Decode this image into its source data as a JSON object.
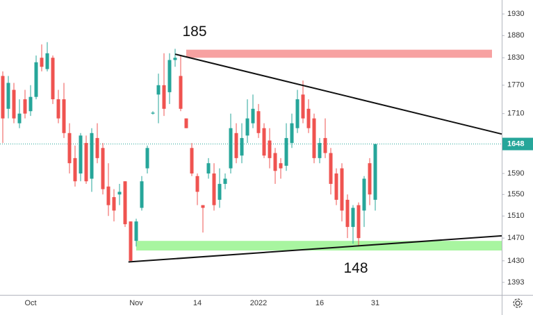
{
  "chart_data": {
    "type": "candlestick",
    "log_scale": true,
    "ylim": [
      1372,
      1963
    ],
    "yticks": [
      1393,
      1430,
      1470,
      1510,
      1550,
      1590,
      1710,
      1770,
      1830,
      1880,
      1930
    ],
    "xlim": [
      -0.5,
      89.75
    ],
    "up_color": "#26a69a",
    "down_color": "#ef5350",
    "categories": [
      null,
      null,
      null,
      null,
      null,
      "Oct",
      null,
      null,
      null,
      null,
      null,
      null,
      null,
      null,
      null,
      null,
      null,
      null,
      null,
      null,
      null,
      null,
      null,
      null,
      "Nov",
      null,
      null,
      null,
      null,
      null,
      null,
      null,
      null,
      null,
      null,
      "14",
      null,
      null,
      null,
      null,
      null,
      null,
      null,
      null,
      null,
      null,
      "2022",
      null,
      null,
      null,
      null,
      null,
      null,
      null,
      null,
      null,
      null,
      "16",
      null,
      null,
      null,
      null,
      null,
      null,
      null,
      null,
      null,
      "31"
    ],
    "open": [
      1790,
      1720,
      1760,
      1690,
      1740,
      1715,
      1745,
      1830,
      1805,
      1830,
      1740,
      1740,
      1670,
      1620,
      1590,
      1650,
      1580,
      1660,
      1640,
      1565,
      1545,
      1550,
      1575,
      1500,
      1465,
      1525,
      1600,
      1710,
      1750,
      1770,
      1755,
      1825,
      1790,
      1700,
      1640,
      1585,
      1530,
      1590,
      1590,
      1540,
      1570,
      1600,
      1670,
      1625,
      1665,
      1690,
      1715,
      1680,
      1655,
      1630,
      1610,
      1605,
      1650,
      1680,
      1750,
      1720,
      1700,
      1620,
      1660,
      1630,
      1590,
      1600,
      1540,
      1490,
      1530,
      1520,
      1610,
      1540
    ],
    "high": [
      1800,
      1790,
      1775,
      1740,
      1760,
      1770,
      1835,
      1860,
      1865,
      1835,
      1760,
      1775,
      1690,
      1645,
      1670,
      1665,
      1680,
      1690,
      1650,
      1610,
      1560,
      1570,
      1575,
      1500,
      1505,
      1585,
      1645,
      1715,
      1795,
      1840,
      1840,
      1850,
      1835,
      1700,
      1650,
      1590,
      1530,
      1620,
      1610,
      1600,
      1590,
      1710,
      1690,
      1690,
      1740,
      1750,
      1730,
      1690,
      1680,
      1640,
      1620,
      1690,
      1710,
      1760,
      1780,
      1740,
      1710,
      1660,
      1700,
      1640,
      1600,
      1610,
      1550,
      1530,
      1535,
      1585,
      1620,
      1648
    ],
    "low": [
      1650,
      1700,
      1690,
      1680,
      1700,
      1705,
      1740,
      1800,
      1800,
      1730,
      1690,
      1660,
      1590,
      1565,
      1575,
      1570,
      1555,
      1610,
      1550,
      1510,
      1500,
      1530,
      1490,
      1428,
      1455,
      1520,
      1590,
      1708,
      1690,
      1705,
      1730,
      1810,
      1715,
      1680,
      1585,
      1530,
      1480,
      1580,
      1520,
      1525,
      1560,
      1590,
      1610,
      1610,
      1650,
      1680,
      1660,
      1620,
      1600,
      1570,
      1580,
      1595,
      1640,
      1670,
      1690,
      1670,
      1610,
      1610,
      1620,
      1550,
      1530,
      1500,
      1470,
      1460,
      1455,
      1490,
      1530,
      1520
    ],
    "close": [
      1700,
      1775,
      1700,
      1710,
      1710,
      1745,
      1820,
      1810,
      1840,
      1740,
      1700,
      1670,
      1610,
      1575,
      1665,
      1575,
      1670,
      1620,
      1560,
      1530,
      1520,
      1555,
      1495,
      1430,
      1500,
      1575,
      1640,
      1712,
      1770,
      1720,
      1825,
      1830,
      1720,
      1680,
      1590,
      1555,
      1525,
      1610,
      1530,
      1570,
      1580,
      1680,
      1620,
      1660,
      1700,
      1720,
      1670,
      1625,
      1620,
      1595,
      1600,
      1660,
      1690,
      1740,
      1700,
      1680,
      1620,
      1650,
      1630,
      1570,
      1540,
      1520,
      1490,
      1525,
      1470,
      1580,
      1550,
      1648
    ],
    "last_price": 1648,
    "last_price_color": "#26a69a",
    "zones": [
      {
        "from": 33,
        "to": 88,
        "low": 1830,
        "high": 1848,
        "color": "#f7a1a1"
      },
      {
        "from": 24,
        "to": 89.75,
        "low": 1448,
        "high": 1465,
        "color": "#a8f5a0"
      }
    ],
    "trendlines": [
      {
        "x": [
          31,
          89.75
        ],
        "y": [
          1838,
          1668
        ]
      },
      {
        "x": [
          22.6,
          89.75
        ],
        "y": [
          1428,
          1474
        ]
      }
    ],
    "annotations": [
      {
        "text": "185",
        "x": 34.5,
        "y": 1888
      },
      {
        "text": "148",
        "x": 63.5,
        "y": 1416
      }
    ]
  }
}
